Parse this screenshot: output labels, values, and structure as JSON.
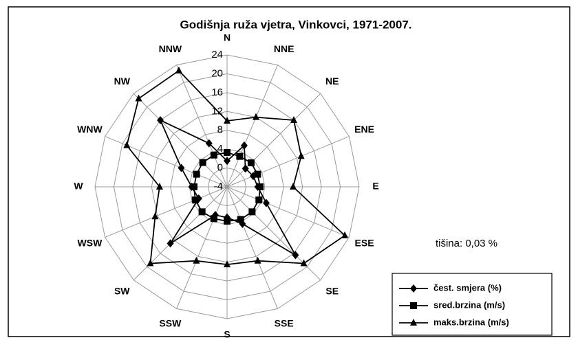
{
  "chart_data": {
    "type": "radar",
    "title": "Godišnja ruža vjetra, Vinkovci, 1971-2007.",
    "annotation": "tišina: 0,03 %",
    "categories": [
      "N",
      "NNE",
      "NE",
      "ENE",
      "E",
      "ESE",
      "SE",
      "SSE",
      "S",
      "SSW",
      "SW",
      "WSW",
      "W",
      "WNW",
      "NW",
      "NNW"
    ],
    "rlim": [
      -4,
      24
    ],
    "rticks": [
      -4,
      0,
      4,
      8,
      12,
      16,
      20,
      24
    ],
    "grid": true,
    "legend": "lower right",
    "series": [
      {
        "name": "čest. smjera  (%)",
        "color": "#000000",
        "marker": "diamond",
        "values": [
          1.5,
          5.5,
          1.5,
          2,
          2.5,
          5,
          16.5,
          4.5,
          2.5,
          2.5,
          13,
          2.5,
          3.5,
          6.5,
          16,
          6
        ]
      },
      {
        "name": "sred.brzina (m/s)",
        "color": "#000000",
        "marker": "square",
        "values": [
          3.3,
          3,
          3.2,
          3,
          3,
          3.3,
          3.5,
          3.5,
          3.3,
          3.3,
          3.5,
          3.3,
          3,
          3,
          3.3,
          3.3
        ]
      },
      {
        "name": "maks.brzina  (m/s)",
        "color": "#000000",
        "marker": "triangle",
        "values": [
          10,
          12,
          16,
          13,
          10,
          23,
          19,
          13,
          12.5,
          13,
          19,
          12.5,
          10.3,
          19,
          22.5,
          22.7
        ]
      }
    ]
  }
}
